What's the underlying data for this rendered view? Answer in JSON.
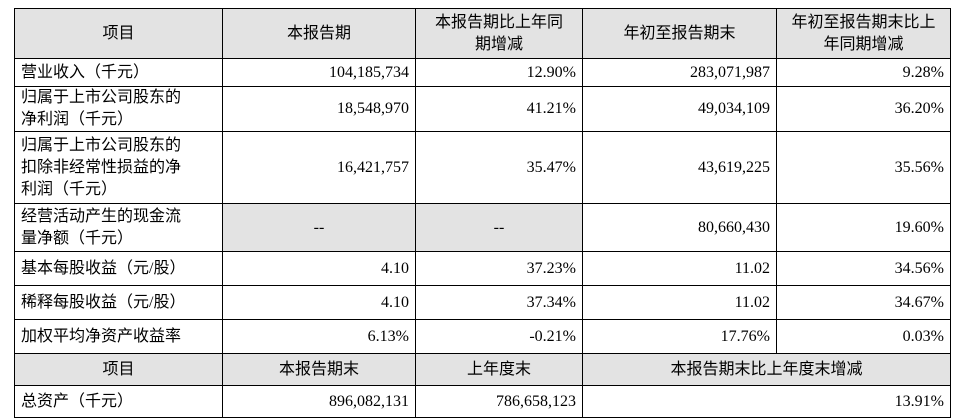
{
  "table": {
    "header": [
      "项目",
      "本报告期",
      [
        "本报告期比上年同",
        "期增减"
      ],
      "年初至报告期末",
      [
        "年初至报告期末比上",
        "年同期增减"
      ]
    ],
    "rows": [
      [
        "营业收入（千元）",
        "104,185,734",
        "12.90%",
        "283,071,987",
        "9.28%"
      ],
      [
        [
          "归属于上市公司股东的",
          "净利润（千元）"
        ],
        "18,548,970",
        "41.21%",
        "49,034,109",
        "36.20%"
      ],
      [
        [
          "归属于上市公司股东的",
          "扣除非经常性损益的净",
          "利润（千元）"
        ],
        "16,421,757",
        "35.47%",
        "43,619,225",
        "35.56%"
      ],
      [
        [
          "经营活动产生的现金流",
          "量净额（千元）"
        ],
        "--",
        "--",
        "80,660,430",
        "19.60%"
      ],
      [
        "基本每股收益（元/股）",
        "4.10",
        "37.23%",
        "11.02",
        "34.56%"
      ],
      [
        "稀释每股收益（元/股）",
        "4.10",
        "37.34%",
        "11.02",
        "34.67%"
      ],
      [
        "加权平均净资产收益率",
        "6.13%",
        "-0.21%",
        "17.76%",
        "0.03%"
      ]
    ],
    "header2": [
      "项目",
      "本报告期末",
      "上年度末",
      "本报告期末比上年度末增减"
    ],
    "rows2": [
      [
        "总资产（千元）",
        "896,082,131",
        "786,658,123",
        "13.91%"
      ]
    ]
  }
}
